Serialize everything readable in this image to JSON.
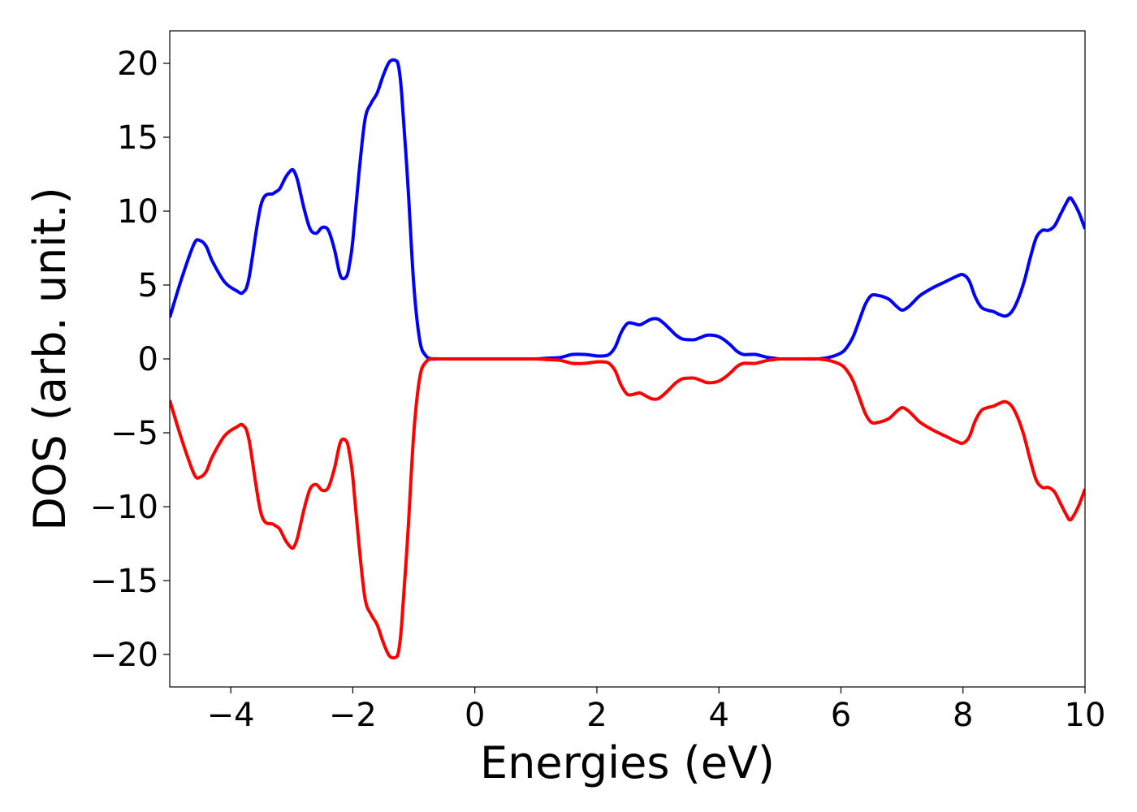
{
  "chart_data": {
    "type": "line",
    "title": "",
    "xlabel": "Energies (eV)",
    "ylabel": "DOS (arb. unit.)",
    "xlim": [
      -5,
      10
    ],
    "ylim": [
      -22.2,
      22.2
    ],
    "xticks": [
      -4,
      -2,
      0,
      2,
      4,
      6,
      8,
      10
    ],
    "xtick_labels": [
      "−4",
      "−2",
      "0",
      "2",
      "4",
      "6",
      "8",
      "10"
    ],
    "yticks": [
      20,
      15,
      10,
      5,
      0,
      -5,
      -10,
      -15,
      -20
    ],
    "ytick_labels": [
      "20",
      "15",
      "10",
      "5",
      "0",
      "−5",
      "−10",
      "−15",
      "−20"
    ],
    "grid": false,
    "legend": "none",
    "colors": {
      "spin_up": "#0000ff",
      "spin_down": "#ff0000",
      "frame": "#000000"
    },
    "series": [
      {
        "color": "#0000ff",
        "x": [
          -5.0,
          -4.8,
          -4.6,
          -4.5,
          -4.4,
          -4.3,
          -4.1,
          -3.9,
          -3.8,
          -3.7,
          -3.5,
          -3.3,
          -3.2,
          -3.1,
          -3.0,
          -2.95,
          -2.9,
          -2.8,
          -2.7,
          -2.6,
          -2.5,
          -2.4,
          -2.3,
          -2.2,
          -2.1,
          -2.05,
          -2.0,
          -1.9,
          -1.8,
          -1.7,
          -1.6,
          -1.5,
          -1.4,
          -1.3,
          -1.25,
          -1.2,
          -1.1,
          -1.0,
          -0.9,
          -0.8,
          -0.7,
          -0.6,
          -0.5,
          -0.3,
          0.0,
          0.5,
          1.0,
          1.2,
          1.4,
          1.6,
          1.8,
          2.0,
          2.1,
          2.2,
          2.3,
          2.4,
          2.5,
          2.6,
          2.7,
          2.8,
          2.9,
          3.0,
          3.1,
          3.2,
          3.3,
          3.4,
          3.5,
          3.6,
          3.7,
          3.8,
          3.9,
          4.0,
          4.1,
          4.2,
          4.3,
          4.4,
          4.5,
          4.6,
          4.7,
          4.8,
          4.9,
          5.0,
          5.2,
          5.4,
          5.6,
          5.8,
          6.0,
          6.1,
          6.2,
          6.3,
          6.4,
          6.5,
          6.6,
          6.7,
          6.8,
          6.9,
          7.0,
          7.1,
          7.2,
          7.3,
          7.5,
          7.7,
          7.9,
          8.0,
          8.1,
          8.2,
          8.3,
          8.4,
          8.5,
          8.6,
          8.7,
          8.8,
          8.9,
          9.0,
          9.1,
          9.2,
          9.3,
          9.4,
          9.5,
          9.6,
          9.7,
          9.75,
          9.8,
          9.9,
          10.0
        ],
        "y": [
          2.8,
          5.5,
          7.8,
          8.0,
          7.6,
          6.6,
          5.2,
          4.6,
          4.5,
          5.5,
          10.5,
          11.2,
          11.5,
          12.3,
          12.8,
          12.6,
          12.0,
          10.2,
          8.8,
          8.5,
          8.9,
          8.7,
          7.4,
          5.6,
          5.6,
          6.5,
          8.0,
          12.5,
          16.2,
          17.3,
          18.0,
          19.2,
          20.1,
          20.2,
          19.8,
          18.0,
          12.0,
          5.0,
          1.2,
          0.2,
          0.0,
          0.0,
          0.0,
          0.0,
          0.0,
          0.0,
          0.0,
          0.05,
          0.1,
          0.3,
          0.3,
          0.2,
          0.2,
          0.3,
          0.8,
          1.8,
          2.4,
          2.4,
          2.3,
          2.5,
          2.7,
          2.7,
          2.4,
          2.0,
          1.6,
          1.35,
          1.3,
          1.3,
          1.45,
          1.6,
          1.6,
          1.5,
          1.25,
          0.9,
          0.5,
          0.3,
          0.3,
          0.3,
          0.2,
          0.1,
          0.05,
          0.0,
          0.0,
          0.0,
          0.0,
          0.1,
          0.4,
          0.8,
          1.5,
          2.6,
          3.7,
          4.3,
          4.3,
          4.2,
          4.0,
          3.6,
          3.3,
          3.5,
          3.9,
          4.3,
          4.8,
          5.2,
          5.6,
          5.7,
          5.3,
          4.2,
          3.5,
          3.3,
          3.2,
          3.0,
          2.9,
          3.2,
          4.0,
          5.2,
          6.8,
          8.2,
          8.7,
          8.7,
          9.0,
          9.8,
          10.6,
          10.9,
          10.7,
          9.9,
          8.8
        ]
      },
      {
        "color": "#ff0000",
        "x": [
          -5.0,
          -4.8,
          -4.6,
          -4.5,
          -4.4,
          -4.3,
          -4.1,
          -3.9,
          -3.8,
          -3.7,
          -3.5,
          -3.3,
          -3.2,
          -3.1,
          -3.0,
          -2.95,
          -2.9,
          -2.8,
          -2.7,
          -2.6,
          -2.5,
          -2.4,
          -2.3,
          -2.2,
          -2.1,
          -2.05,
          -2.0,
          -1.9,
          -1.8,
          -1.7,
          -1.6,
          -1.5,
          -1.4,
          -1.3,
          -1.25,
          -1.2,
          -1.1,
          -1.0,
          -0.9,
          -0.8,
          -0.7,
          -0.6,
          -0.5,
          -0.3,
          0.0,
          0.5,
          1.0,
          1.2,
          1.4,
          1.6,
          1.8,
          2.0,
          2.1,
          2.2,
          2.3,
          2.4,
          2.5,
          2.6,
          2.7,
          2.8,
          2.9,
          3.0,
          3.1,
          3.2,
          3.3,
          3.4,
          3.5,
          3.6,
          3.7,
          3.8,
          3.9,
          4.0,
          4.1,
          4.2,
          4.3,
          4.4,
          4.5,
          4.6,
          4.7,
          4.8,
          4.9,
          5.0,
          5.2,
          5.4,
          5.6,
          5.8,
          6.0,
          6.1,
          6.2,
          6.3,
          6.4,
          6.5,
          6.6,
          6.7,
          6.8,
          6.9,
          7.0,
          7.1,
          7.2,
          7.3,
          7.5,
          7.7,
          7.9,
          8.0,
          8.1,
          8.2,
          8.3,
          8.4,
          8.5,
          8.6,
          8.7,
          8.8,
          8.9,
          9.0,
          9.1,
          9.2,
          9.3,
          9.4,
          9.5,
          9.6,
          9.7,
          9.75,
          9.8,
          9.9,
          10.0
        ],
        "y": [
          -2.8,
          -5.5,
          -7.8,
          -8.0,
          -7.6,
          -6.6,
          -5.2,
          -4.6,
          -4.5,
          -5.5,
          -10.5,
          -11.2,
          -11.5,
          -12.3,
          -12.8,
          -12.6,
          -12.0,
          -10.2,
          -8.8,
          -8.5,
          -8.9,
          -8.7,
          -7.4,
          -5.6,
          -5.6,
          -6.5,
          -8.0,
          -12.5,
          -16.2,
          -17.3,
          -18.0,
          -19.2,
          -20.1,
          -20.2,
          -19.8,
          -18.0,
          -12.0,
          -5.0,
          -1.2,
          -0.2,
          0.0,
          0.0,
          0.0,
          0.0,
          0.0,
          0.0,
          0.0,
          -0.05,
          -0.1,
          -0.3,
          -0.3,
          -0.2,
          -0.2,
          -0.3,
          -0.8,
          -1.8,
          -2.4,
          -2.4,
          -2.3,
          -2.5,
          -2.7,
          -2.7,
          -2.4,
          -2.0,
          -1.6,
          -1.35,
          -1.3,
          -1.3,
          -1.45,
          -1.6,
          -1.6,
          -1.5,
          -1.25,
          -0.9,
          -0.5,
          -0.3,
          -0.3,
          -0.3,
          -0.2,
          -0.1,
          -0.05,
          0.0,
          0.0,
          0.0,
          0.0,
          -0.1,
          -0.4,
          -0.8,
          -1.5,
          -2.6,
          -3.7,
          -4.3,
          -4.3,
          -4.2,
          -4.0,
          -3.6,
          -3.3,
          -3.5,
          -3.9,
          -4.3,
          -4.8,
          -5.2,
          -5.6,
          -5.7,
          -5.3,
          -4.2,
          -3.5,
          -3.3,
          -3.2,
          -3.0,
          -2.9,
          -3.2,
          -4.0,
          -5.2,
          -6.8,
          -8.2,
          -8.7,
          -8.7,
          -9.0,
          -9.8,
          -10.6,
          -10.9,
          -10.7,
          -9.9,
          -8.8
        ]
      }
    ]
  }
}
